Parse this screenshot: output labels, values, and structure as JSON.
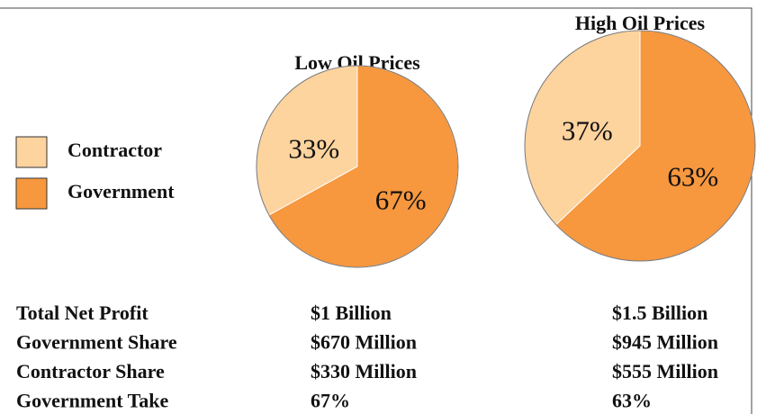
{
  "chart_data": [
    {
      "type": "pie",
      "title": "Low Oil Prices",
      "categories": [
        "Contractor",
        "Government"
      ],
      "values": [
        33,
        67
      ],
      "value_labels": [
        "33%",
        "67%"
      ],
      "colors": [
        "#fdd39e",
        "#f7973e"
      ]
    },
    {
      "type": "pie",
      "title": "High Oil Prices",
      "categories": [
        "Contractor",
        "Government"
      ],
      "values": [
        37,
        63
      ],
      "value_labels": [
        "37%",
        "63%"
      ],
      "colors": [
        "#fdd39e",
        "#f7973e"
      ]
    }
  ],
  "table": {
    "rows": [
      [
        "Total Net Profit",
        "$1 Billion",
        "$1.5 Billion"
      ],
      [
        "Government Share",
        "$670 Million",
        "$945 Million"
      ],
      [
        "Contractor Share",
        "$330 Million",
        "$555 Million"
      ],
      [
        "Government Take",
        "67%",
        "63%"
      ]
    ]
  }
}
